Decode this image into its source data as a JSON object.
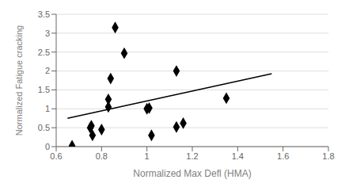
{
  "chart_data": {
    "type": "scatter",
    "xlabel": "Normalized Max Defl (HMA)",
    "ylabel": "Normalized Fatigue cracking",
    "series": [
      {
        "type": "scatter",
        "marker": "diamond",
        "color": "black",
        "x": [
          0.67,
          0.75,
          0.755,
          0.76,
          0.8,
          0.83,
          0.83,
          0.84,
          0.86,
          0.9,
          1.0,
          1.01,
          1.02,
          1.13,
          1.13,
          1.16,
          1.35
        ],
        "values": [
          0.02,
          0.5,
          0.55,
          0.3,
          0.45,
          1.05,
          1.25,
          1.8,
          3.15,
          2.47,
          1.0,
          1.02,
          0.3,
          2.0,
          0.52,
          0.62,
          1.28
        ]
      },
      {
        "type": "line",
        "color": "black",
        "x": [
          0.65,
          1.55
        ],
        "values": [
          0.75,
          1.93
        ]
      }
    ],
    "xlim": [
      0.6,
      1.8
    ],
    "ylim": [
      0,
      3.5
    ],
    "xticks": [
      0.6,
      0.8,
      1,
      1.2,
      1.4,
      1.6,
      1.8
    ],
    "yticks": [
      0,
      0.5,
      1,
      1.5,
      2,
      2.5,
      3,
      3.5
    ],
    "grid": "y"
  }
}
